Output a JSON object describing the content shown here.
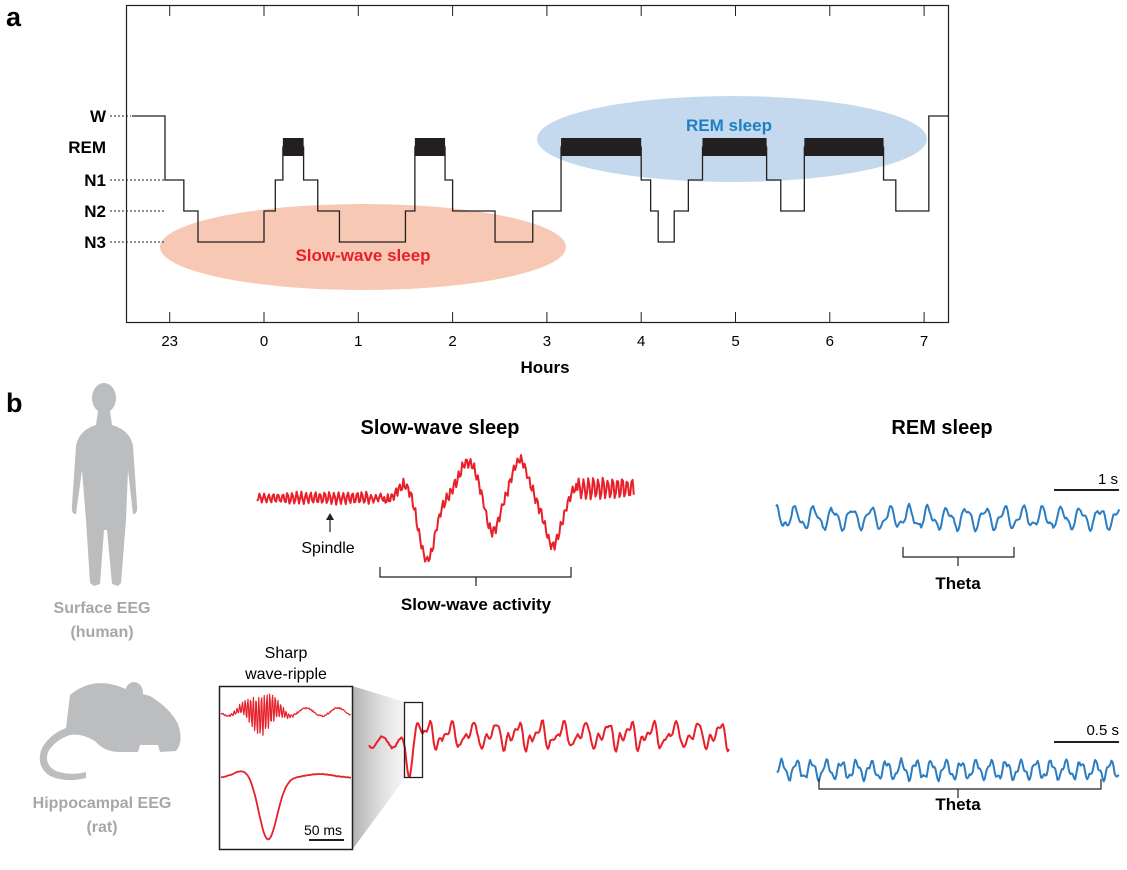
{
  "panel_a": {
    "label": "a",
    "y_stages": [
      "W",
      "REM",
      "N1",
      "N2",
      "N3"
    ],
    "x_ticks": [
      "23",
      "0",
      "1",
      "2",
      "3",
      "4",
      "5",
      "6",
      "7"
    ],
    "x_title": "Hours",
    "rem_region_label": "REM sleep",
    "sws_region_label": "Slow-wave sleep",
    "rem_blocks": [
      [
        0.2,
        0.42
      ],
      [
        1.6,
        1.92
      ],
      [
        3.15,
        4.0
      ],
      [
        4.65,
        5.33
      ],
      [
        5.73,
        6.57
      ]
    ],
    "hypnogram": [
      [
        -1.4,
        "W"
      ],
      [
        -1.05,
        "N1"
      ],
      [
        -0.85,
        "N2"
      ],
      [
        -0.7,
        "N3"
      ],
      [
        0.0,
        "N2"
      ],
      [
        0.12,
        "N1"
      ],
      [
        0.2,
        "REM"
      ],
      [
        0.42,
        "N1"
      ],
      [
        0.57,
        "N2"
      ],
      [
        0.8,
        "N3"
      ],
      [
        1.5,
        "N2"
      ],
      [
        1.6,
        "REM"
      ],
      [
        1.92,
        "N1"
      ],
      [
        2.0,
        "N2"
      ],
      [
        2.45,
        "N3"
      ],
      [
        2.85,
        "N2"
      ],
      [
        3.15,
        "REM"
      ],
      [
        4.0,
        "N1"
      ],
      [
        4.1,
        "N2"
      ],
      [
        4.18,
        "N3"
      ],
      [
        4.35,
        "N2"
      ],
      [
        4.5,
        "N1"
      ],
      [
        4.65,
        "REM"
      ],
      [
        5.33,
        "N1"
      ],
      [
        5.48,
        "N2"
      ],
      [
        5.73,
        "REM"
      ],
      [
        6.57,
        "N1"
      ],
      [
        6.7,
        "N2"
      ],
      [
        7.05,
        "W"
      ],
      [
        7.3,
        "W"
      ]
    ],
    "colors": {
      "rem": "#c5d9ee",
      "sws": "#f7c8b3",
      "rem_text": "#1f7fc3",
      "sws_text": "#e8202a"
    }
  },
  "panel_b": {
    "label": "b",
    "col_sws_title": "Slow-wave sleep",
    "col_rem_title": "REM sleep",
    "human_label_1": "Surface EEG",
    "human_label_2": "(human)",
    "rat_label_1": "Hippocampal EEG",
    "rat_label_2": "(rat)",
    "spindle_label": "Spindle",
    "slow_wave_activity_label": "Slow-wave activity",
    "theta_label_human": "Theta",
    "theta_label_rat": "Theta",
    "scale_human": "1 s",
    "scale_rat": "0.5 s",
    "swr_title_1": "Sharp",
    "swr_title_2": "wave-ripple",
    "swr_scale": "50 ms",
    "colors": {
      "trace_red": "#e8202a",
      "trace_blue": "#2b7ec3",
      "silhouette": "#bcbdbf"
    }
  }
}
